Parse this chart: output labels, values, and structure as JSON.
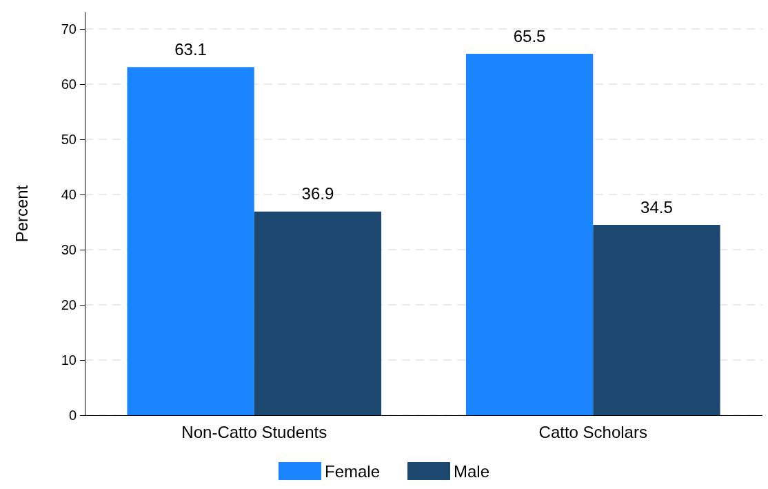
{
  "chart_data": {
    "type": "bar",
    "ylabel": "Percent",
    "categories": [
      "Non-Catto Students",
      "Catto Scholars"
    ],
    "series": [
      {
        "name": "Female",
        "color": "#1a85ff",
        "values": [
          63.1,
          65.5
        ]
      },
      {
        "name": "Male",
        "color": "#1c476f",
        "values": [
          36.9,
          34.5
        ]
      }
    ],
    "ylim": [
      0,
      73
    ],
    "yticks": [
      0,
      10,
      20,
      30,
      40,
      50,
      60,
      70
    ],
    "grid": "y",
    "legend": "bottom",
    "data_labels": true
  }
}
